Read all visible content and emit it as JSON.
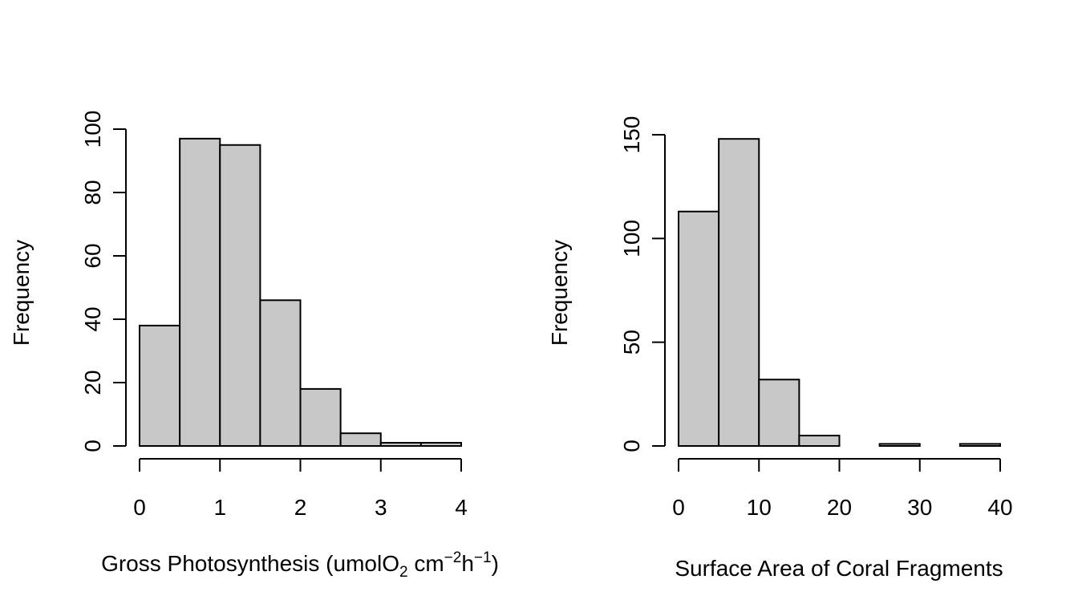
{
  "chart_data": [
    {
      "type": "bar",
      "title": "",
      "xlabel": {
        "base": "Gross Photosynthesis (umolO",
        "sub": "2",
        "unit": " cm",
        "sup1": "−2",
        "unit2": "h",
        "sup2": "−1",
        "close": ")"
      },
      "ylabel": "Frequency",
      "bin_edges": [
        0,
        0.5,
        1,
        1.5,
        2,
        2.5,
        3,
        3.5,
        4
      ],
      "values": [
        38,
        97,
        95,
        46,
        18,
        4,
        1,
        1
      ],
      "xticks": [
        0,
        1,
        2,
        3,
        4
      ],
      "yticks": [
        0,
        20,
        40,
        60,
        80,
        100
      ],
      "xlim": [
        0,
        4
      ],
      "ylim": [
        0,
        100
      ],
      "grid": false
    },
    {
      "type": "bar",
      "title": "",
      "xlabel": "Surface Area of Coral Fragments",
      "ylabel": "Frequency",
      "bin_edges": [
        0,
        5,
        10,
        15,
        20,
        25,
        30,
        35,
        40
      ],
      "values": [
        113,
        148,
        32,
        5,
        0,
        1,
        0,
        1
      ],
      "xticks": [
        0,
        10,
        20,
        30,
        40
      ],
      "yticks": [
        0,
        50,
        100,
        150
      ],
      "xlim": [
        0,
        40
      ],
      "ylim": [
        0,
        150
      ],
      "grid": false
    }
  ]
}
